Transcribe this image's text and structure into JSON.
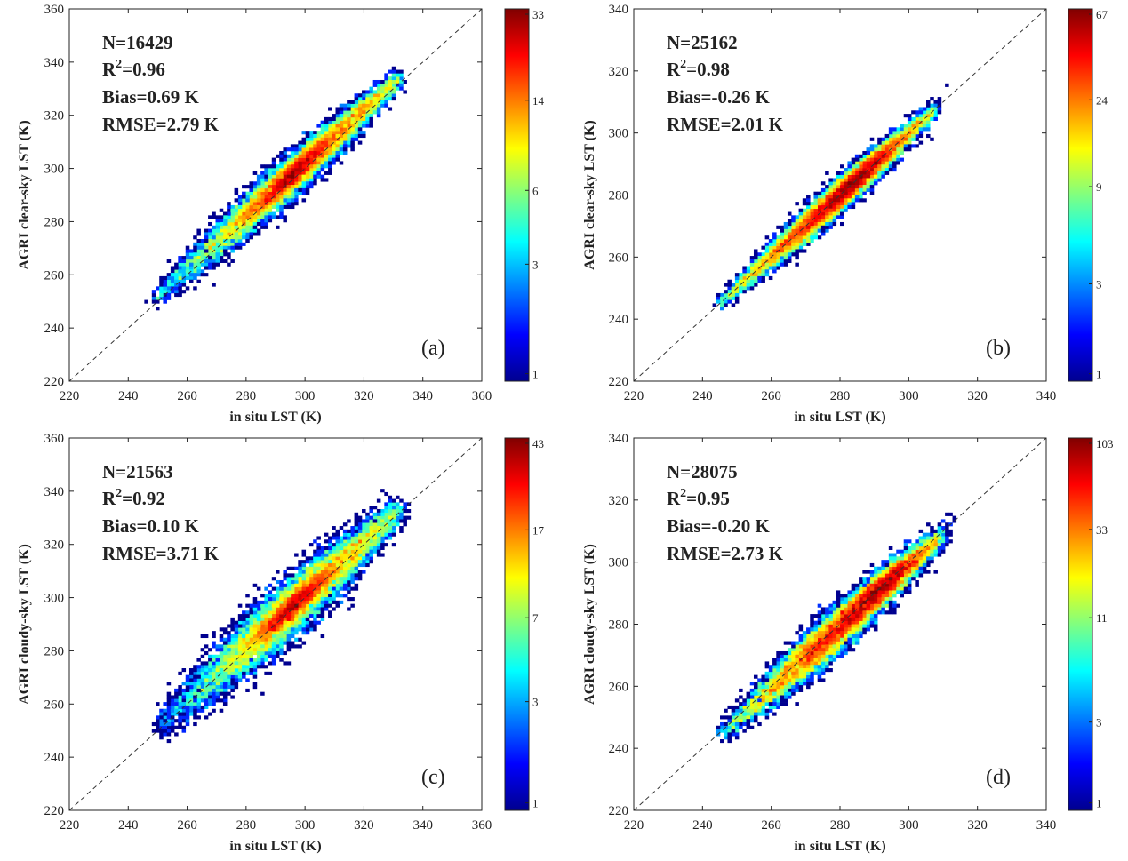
{
  "chart_data": [
    {
      "type": "heatmap",
      "panel_label": "(a)",
      "xlabel": "in situ LST (K)",
      "ylabel": "AGRI clear-sky LST (K)",
      "xlim": [
        220,
        360
      ],
      "ylim": [
        220,
        360
      ],
      "xticks": [
        220,
        240,
        260,
        280,
        300,
        320,
        340,
        360
      ],
      "yticks": [
        220,
        240,
        260,
        280,
        300,
        320,
        340,
        360
      ],
      "stats": {
        "n": "N=16429",
        "r2_prefix": "R",
        "r2_sup": "2",
        "r2_value": "=0.96",
        "bias": "Bias=0.69 K",
        "rmse": "RMSE=2.79 K"
      },
      "colorbar": {
        "max": 33,
        "ticks": [
          "33",
          "14",
          "6",
          "3",
          "1"
        ]
      },
      "density": {
        "x_range": [
          248,
          332
        ],
        "center": [
          297,
          299
        ],
        "spread": 5.5,
        "peak_at": [
          296,
          298
        ]
      },
      "identity_line": true
    },
    {
      "type": "heatmap",
      "panel_label": "(b)",
      "xlabel": "in situ LST (K)",
      "ylabel": "AGRI clear-sky LST (K)",
      "xlim": [
        220,
        340
      ],
      "ylim": [
        220,
        340
      ],
      "xticks": [
        220,
        240,
        260,
        280,
        300,
        320,
        340
      ],
      "yticks": [
        220,
        240,
        260,
        280,
        300,
        320,
        340
      ],
      "stats": {
        "n": "N=25162",
        "r2_prefix": "R",
        "r2_sup": "2",
        "r2_value": "=0.98",
        "bias": "Bias=-0.26 K",
        "rmse": "RMSE=2.01 K"
      },
      "colorbar": {
        "max": 67,
        "ticks": [
          "67",
          "24",
          "9",
          "3",
          "1"
        ]
      },
      "density": {
        "x_range": [
          245,
          308
        ],
        "center": [
          278,
          278
        ],
        "spread": 3.5,
        "peak_at": [
          285,
          285
        ]
      },
      "identity_line": true
    },
    {
      "type": "heatmap",
      "panel_label": "(c)",
      "xlabel": "in situ LST (K)",
      "ylabel": "AGRI cloudy-sky LST (K)",
      "xlim": [
        220,
        360
      ],
      "ylim": [
        220,
        360
      ],
      "xticks": [
        220,
        240,
        260,
        280,
        300,
        320,
        340,
        360
      ],
      "yticks": [
        220,
        240,
        260,
        280,
        300,
        320,
        340,
        360
      ],
      "stats": {
        "n": "N=21563",
        "r2_prefix": "R",
        "r2_sup": "2",
        "r2_value": "=0.92",
        "bias": "Bias=0.10 K",
        "rmse": "RMSE=3.71 K"
      },
      "colorbar": {
        "max": 43,
        "ticks": [
          "43",
          "17",
          "7",
          "3",
          "1"
        ]
      },
      "density": {
        "x_range": [
          250,
          332
        ],
        "center": [
          297,
          298
        ],
        "spread": 8,
        "peak_at": [
          296,
          297
        ]
      },
      "identity_line": true
    },
    {
      "type": "heatmap",
      "panel_label": "(d)",
      "xlabel": "in situ LST (K)",
      "ylabel": "AGRI cloudy-sky LST (K)",
      "xlim": [
        220,
        340
      ],
      "ylim": [
        220,
        340
      ],
      "xticks": [
        220,
        240,
        260,
        280,
        300,
        320,
        340
      ],
      "yticks": [
        220,
        240,
        260,
        280,
        300,
        320,
        340
      ],
      "stats": {
        "n": "N=28075",
        "r2_prefix": "R",
        "r2_sup": "2",
        "r2_value": "=0.95",
        "bias": "Bias=-0.20 K",
        "rmse": "RMSE=2.73 K"
      },
      "colorbar": {
        "max": 103,
        "ticks": [
          "103",
          "33",
          "11",
          "3",
          "1"
        ]
      },
      "density": {
        "x_range": [
          246,
          310
        ],
        "center": [
          280,
          279
        ],
        "spread": 5,
        "peak_at": [
          292,
          292
        ]
      },
      "identity_line": true
    }
  ],
  "colormap": [
    "#00008f",
    "#0000ff",
    "#0080ff",
    "#00ffff",
    "#80ff80",
    "#ffff00",
    "#ff8000",
    "#ff0000",
    "#800000"
  ]
}
